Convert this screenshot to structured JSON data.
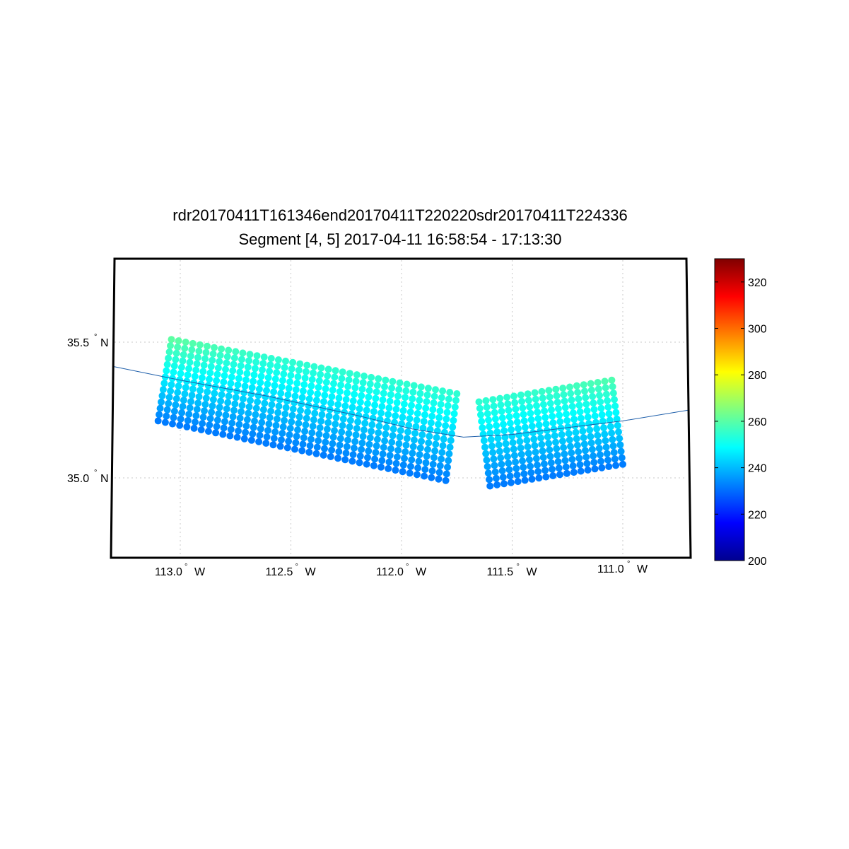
{
  "chart_data": {
    "type": "scatter",
    "title": "rdr20170411T161346end20170411T220220sdr20170411T224336",
    "subtitle": "Segment [4, 5] 2017-04-11 16:58:54 - 17:13:30",
    "xlabel": "",
    "ylabel": "",
    "x_ticks": [
      {
        "value": -113.0,
        "label": "113.0",
        "deg": "°",
        "hemi": "W"
      },
      {
        "value": -112.5,
        "label": "112.5",
        "deg": "°",
        "hemi": "W"
      },
      {
        "value": -112.0,
        "label": "112.0",
        "deg": "°",
        "hemi": "W"
      },
      {
        "value": -111.5,
        "label": "111.5",
        "deg": "°",
        "hemi": "W"
      },
      {
        "value": -111.0,
        "label": "111.0",
        "deg": "°",
        "hemi": "W"
      }
    ],
    "y_ticks": [
      {
        "value": 35.5,
        "label": "35.5",
        "deg": "°",
        "hemi": "N"
      },
      {
        "value": 35.0,
        "label": "35.0",
        "deg": "°",
        "hemi": "N"
      }
    ],
    "xlim": [
      -113.3,
      -110.7
    ],
    "ylim": [
      34.7,
      35.8
    ],
    "grid": true,
    "colormap": "jet",
    "colorbar": {
      "range": [
        200,
        330
      ],
      "ticks": [
        200,
        220,
        240,
        260,
        280,
        300,
        320
      ],
      "tick_labels": [
        "200",
        "220",
        "240",
        "260",
        "280",
        "300",
        "320"
      ]
    },
    "series": [
      {
        "segment": 4,
        "corners": {
          "top_left": [
            -113.04,
            35.51
          ],
          "top_right": [
            -111.75,
            35.31
          ],
          "bottom_left": [
            -113.1,
            35.21
          ],
          "bottom_right": [
            -111.8,
            34.99
          ]
        },
        "columns": 41,
        "rows": 14,
        "value_range": [
          232,
          262
        ]
      },
      {
        "segment": 5,
        "corners": {
          "top_left": [
            -111.65,
            35.28
          ],
          "top_right": [
            -111.05,
            35.36
          ],
          "bottom_left": [
            -111.6,
            34.97
          ],
          "bottom_right": [
            -111.0,
            35.05
          ]
        },
        "columns": 20,
        "rows": 14,
        "value_range": [
          232,
          262
        ]
      }
    ],
    "ground_track": {
      "lon": [
        -113.3,
        -113.0,
        -112.6,
        -112.2,
        -111.95,
        -111.72,
        -111.5,
        -111.2,
        -111.0,
        -110.7
      ],
      "lat": [
        35.41,
        35.36,
        35.3,
        35.23,
        35.18,
        35.15,
        35.16,
        35.19,
        35.21,
        35.25
      ],
      "color": "#1f5faa"
    }
  }
}
